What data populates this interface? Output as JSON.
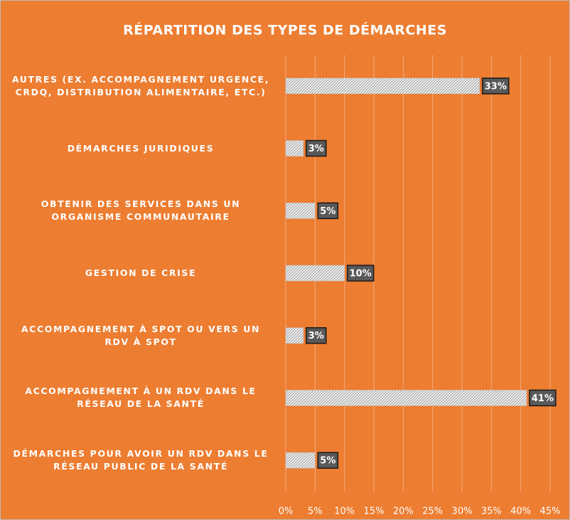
{
  "chart_data": {
    "type": "bar",
    "orientation": "horizontal",
    "title": "RÉPARTITION DES TYPES DE DÉMARCHES",
    "categories": [
      "AUTRES (EX. ACCOMPAGNEMENT URGENCE, CRDQ, DISTRIBUTION ALIMENTAIRE, ETC.)",
      "DÉMARCHES JURIDIQUES",
      "OBTENIR DES SERVICES DANS UN ORGANISME COMMUNAUTAIRE",
      "GESTION DE CRISE",
      "ACCOMPAGNEMENT À SPOT OU VERS UN RDV À SPOT",
      "ACCOMPAGNEMENT À UN RDV DANS LE RÉSEAU DE LA SANTÉ",
      "DÉMARCHES POUR AVOIR UN RDV DANS LE RÉSEAU PUBLIC DE LA SANTÉ"
    ],
    "values": [
      33,
      3,
      5,
      10,
      3,
      41,
      5
    ],
    "value_labels": [
      "33%",
      "3%",
      "5%",
      "10%",
      "3%",
      "41%",
      "5%"
    ],
    "xlim": [
      0,
      45
    ],
    "xticks": [
      {
        "value": 0,
        "label": "0%"
      },
      {
        "value": 5,
        "label": "5%"
      },
      {
        "value": 10,
        "label": "10%"
      },
      {
        "value": 15,
        "label": "15%"
      },
      {
        "value": 20,
        "label": "20%"
      },
      {
        "value": 25,
        "label": "25%"
      },
      {
        "value": 30,
        "label": "30%"
      },
      {
        "value": 35,
        "label": "35%"
      },
      {
        "value": 40,
        "label": "40%"
      },
      {
        "value": 45,
        "label": "45%"
      }
    ],
    "grid": true,
    "color": "#d9d9d9"
  }
}
